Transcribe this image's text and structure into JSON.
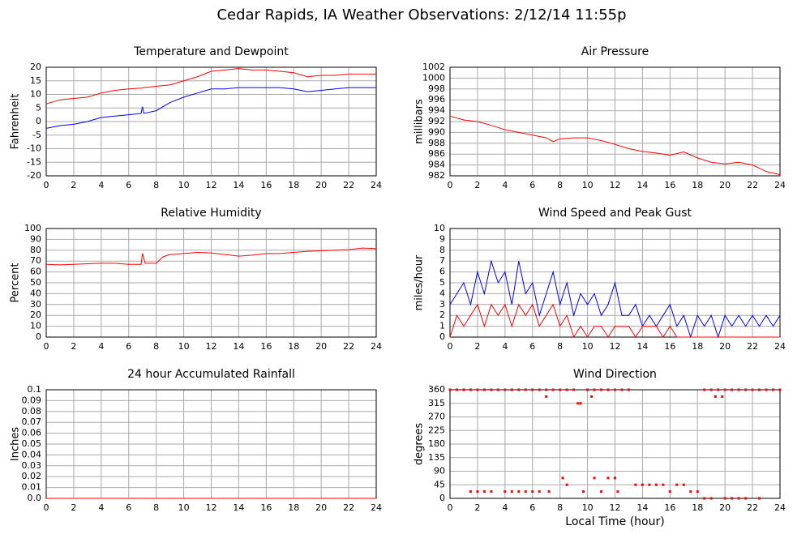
{
  "title": "Cedar Rapids, IA Weather Observations: 2/12/14 11:55p",
  "chart_data": [
    {
      "type": "line",
      "title": "Temperature and Dewpoint",
      "ylabel": "Fahrenheit",
      "x": [
        0,
        1,
        2,
        3,
        4,
        5,
        6,
        6.9,
        7,
        7.1,
        8,
        9,
        10,
        11,
        12,
        13,
        14,
        15,
        16,
        17,
        18,
        19,
        20,
        21,
        22,
        23,
        24
      ],
      "series": [
        {
          "color": "#ff0000",
          "values": [
            6.5,
            8,
            8.5,
            9,
            10.5,
            11.5,
            12,
            12.3,
            12.4,
            12.5,
            13,
            13.5,
            15,
            16.5,
            18.5,
            19,
            19.5,
            19,
            19,
            18.5,
            18,
            16.5,
            17,
            17,
            17.5,
            17.5,
            17.5
          ]
        },
        {
          "color": "#0000ff",
          "values": [
            -2.5,
            -1.5,
            -1,
            0,
            1.5,
            2,
            2.5,
            3,
            5.5,
            3,
            4,
            7,
            9,
            10.5,
            12,
            12,
            12.5,
            12.5,
            12.5,
            12.5,
            12,
            11,
            11.5,
            12,
            12.5,
            12.5,
            12.5
          ]
        }
      ],
      "xlim": [
        0,
        24
      ],
      "xticks": [
        0,
        2,
        4,
        6,
        8,
        10,
        12,
        14,
        16,
        18,
        20,
        22,
        24
      ],
      "ylim": [
        -20,
        20
      ],
      "yticks": [
        -20,
        -15,
        -10,
        -5,
        0,
        5,
        10,
        15,
        20
      ],
      "grid": true
    },
    {
      "type": "line",
      "title": "Air Pressure",
      "ylabel": "millibars",
      "x": [
        0,
        1,
        2,
        3,
        4,
        5,
        6,
        7,
        7.5,
        8,
        9,
        10,
        11,
        12,
        13,
        14,
        15,
        16,
        17,
        18,
        19,
        20,
        21,
        22,
        23,
        24
      ],
      "series": [
        {
          "color": "#ff0000",
          "values": [
            993,
            992.3,
            992,
            991.3,
            990.5,
            990,
            989.5,
            989,
            988.3,
            988.8,
            989,
            989,
            988.5,
            987.8,
            987,
            986.5,
            986.2,
            985.8,
            986.4,
            985.3,
            984.5,
            984.2,
            984.5,
            984,
            982.8,
            982.2
          ]
        }
      ],
      "xlim": [
        0,
        24
      ],
      "xticks": [
        0,
        2,
        4,
        6,
        8,
        10,
        12,
        14,
        16,
        18,
        20,
        22,
        24
      ],
      "ylim": [
        982,
        1002
      ],
      "yticks": [
        982,
        984,
        986,
        988,
        990,
        992,
        994,
        996,
        998,
        1000,
        1002
      ],
      "grid": true
    },
    {
      "type": "line",
      "title": "Relative Humidity",
      "ylabel": "Percent",
      "x": [
        0,
        1,
        2,
        3,
        4,
        5,
        6,
        6.9,
        7,
        7.2,
        8,
        8.5,
        9,
        10,
        11,
        12,
        13,
        14,
        15,
        16,
        17,
        18,
        19,
        20,
        21,
        22,
        23,
        24
      ],
      "series": [
        {
          "color": "#ff0000",
          "values": [
            67,
            66.5,
            67,
            67.5,
            68,
            68,
            67,
            67,
            77,
            68,
            68,
            74,
            76,
            77,
            78,
            77.5,
            76,
            74.5,
            75.5,
            77,
            77,
            78,
            79,
            79.5,
            80,
            80.5,
            82,
            81.5
          ]
        }
      ],
      "xlim": [
        0,
        24
      ],
      "xticks": [
        0,
        2,
        4,
        6,
        8,
        10,
        12,
        14,
        16,
        18,
        20,
        22,
        24
      ],
      "ylim": [
        0,
        100
      ],
      "yticks": [
        0,
        10,
        20,
        30,
        40,
        50,
        60,
        70,
        80,
        90,
        100
      ],
      "grid": true
    },
    {
      "type": "line",
      "title": "Wind Speed and Peak Gust",
      "ylabel": "miles/hour",
      "x": [
        0,
        0.5,
        1,
        1.5,
        2,
        2.5,
        3,
        3.5,
        4,
        4.5,
        5,
        5.5,
        6,
        6.5,
        7,
        7.5,
        8,
        8.5,
        9,
        9.5,
        10,
        10.5,
        11,
        11.5,
        12,
        12.5,
        13,
        13.5,
        14,
        14.5,
        15,
        15.5,
        16,
        16.5,
        17,
        17.5,
        18,
        18.5,
        19,
        19.5,
        20,
        20.5,
        21,
        21.5,
        22,
        22.5,
        23,
        23.5,
        24
      ],
      "series": [
        {
          "color": "#0000ff",
          "values": [
            3,
            4,
            5,
            3,
            6,
            4,
            7,
            5,
            6,
            3,
            7,
            4,
            5,
            2,
            4,
            6,
            3,
            5,
            2,
            4,
            3,
            4,
            2,
            3,
            5,
            2,
            2,
            3,
            1,
            2,
            1,
            2,
            3,
            1,
            2,
            0,
            2,
            1,
            2,
            0,
            2,
            1,
            2,
            1,
            2,
            1,
            2,
            1,
            2
          ]
        },
        {
          "color": "#ff0000",
          "values": [
            0,
            2,
            1,
            2,
            3,
            1,
            3,
            2,
            3,
            1,
            3,
            2,
            3,
            1,
            2,
            3,
            1,
            2,
            0,
            1,
            0,
            1,
            1,
            0,
            1,
            1,
            1,
            0,
            1,
            1,
            1,
            0,
            1,
            0,
            0,
            0,
            0,
            0,
            0,
            0,
            0,
            0,
            0,
            0,
            0,
            0,
            0,
            0,
            0
          ]
        }
      ],
      "xlim": [
        0,
        24
      ],
      "xticks": [
        0,
        2,
        4,
        6,
        8,
        10,
        12,
        14,
        16,
        18,
        20,
        22,
        24
      ],
      "ylim": [
        0,
        10
      ],
      "yticks": [
        0,
        1,
        2,
        3,
        4,
        5,
        6,
        7,
        8,
        9,
        10
      ],
      "grid": true
    },
    {
      "type": "line",
      "title": "24 hour Accumulated Rainfall",
      "ylabel": "Inches",
      "x": [
        0,
        24
      ],
      "series": [
        {
          "color": "#ff0000",
          "values": [
            0,
            0
          ]
        }
      ],
      "xlim": [
        0,
        24
      ],
      "xticks": [
        0,
        2,
        4,
        6,
        8,
        10,
        12,
        14,
        16,
        18,
        20,
        22,
        24
      ],
      "ylim": [
        0,
        0.1
      ],
      "yticks": [
        {
          "value": 0,
          "label": "0.0"
        },
        0.01,
        0.02,
        0.03,
        0.04,
        0.05,
        0.06,
        0.07,
        0.08,
        0.09,
        0.1
      ],
      "grid": true
    },
    {
      "type": "scatter",
      "title": "Wind Direction",
      "ylabel": "degrees",
      "xlabel": "Local Time (hour)",
      "series": [
        {
          "color": "#ff0000",
          "x": [
            0,
            0.5,
            1,
            1.5,
            2,
            2.5,
            3,
            3.5,
            4,
            4.5,
            5,
            5.5,
            6,
            6.5,
            7,
            7.5,
            8,
            8.5,
            9,
            10,
            10.5,
            11,
            11.5,
            12,
            12.5,
            13,
            18.5,
            19,
            19.5,
            20,
            20.5,
            21,
            21.5,
            22,
            22.5,
            23,
            23.5,
            24,
            1.5,
            2,
            2.5,
            3,
            4,
            4.5,
            5,
            5.5,
            6,
            6.5,
            7,
            7.2,
            8.2,
            8.5,
            9.3,
            9.5,
            9.7,
            10.3,
            10.5,
            11,
            11.5,
            12,
            12.2,
            13.5,
            14,
            14.5,
            15,
            15.5,
            16,
            16.5,
            17,
            17.5,
            18,
            18.5,
            19,
            19.3,
            19.8,
            20,
            20.5,
            21,
            21.5,
            22.5
          ],
          "values": [
            360,
            360,
            360,
            360,
            360,
            360,
            360,
            360,
            360,
            360,
            360,
            360,
            360,
            360,
            360,
            360,
            360,
            360,
            360,
            360,
            360,
            360,
            360,
            360,
            360,
            360,
            360,
            360,
            360,
            360,
            360,
            360,
            360,
            360,
            360,
            360,
            360,
            360,
            22.5,
            22.5,
            22.5,
            22.5,
            22.5,
            22.5,
            22.5,
            22.5,
            22.5,
            22.5,
            337.5,
            22.5,
            67.5,
            45,
            315,
            315,
            22.5,
            337.5,
            67.5,
            22.5,
            67.5,
            67.5,
            22.5,
            45,
            45,
            45,
            45,
            45,
            22.5,
            45,
            45,
            22.5,
            22.5,
            0,
            0,
            337.5,
            337.5,
            0,
            0,
            0,
            0,
            0
          ]
        }
      ],
      "xlim": [
        0,
        24
      ],
      "xticks": [
        0,
        2,
        4,
        6,
        8,
        10,
        12,
        14,
        16,
        18,
        20,
        22,
        24
      ],
      "ylim": [
        0,
        360
      ],
      "yticks": [
        0,
        45,
        90,
        135,
        180,
        225,
        270,
        315,
        360
      ],
      "grid": true
    }
  ]
}
